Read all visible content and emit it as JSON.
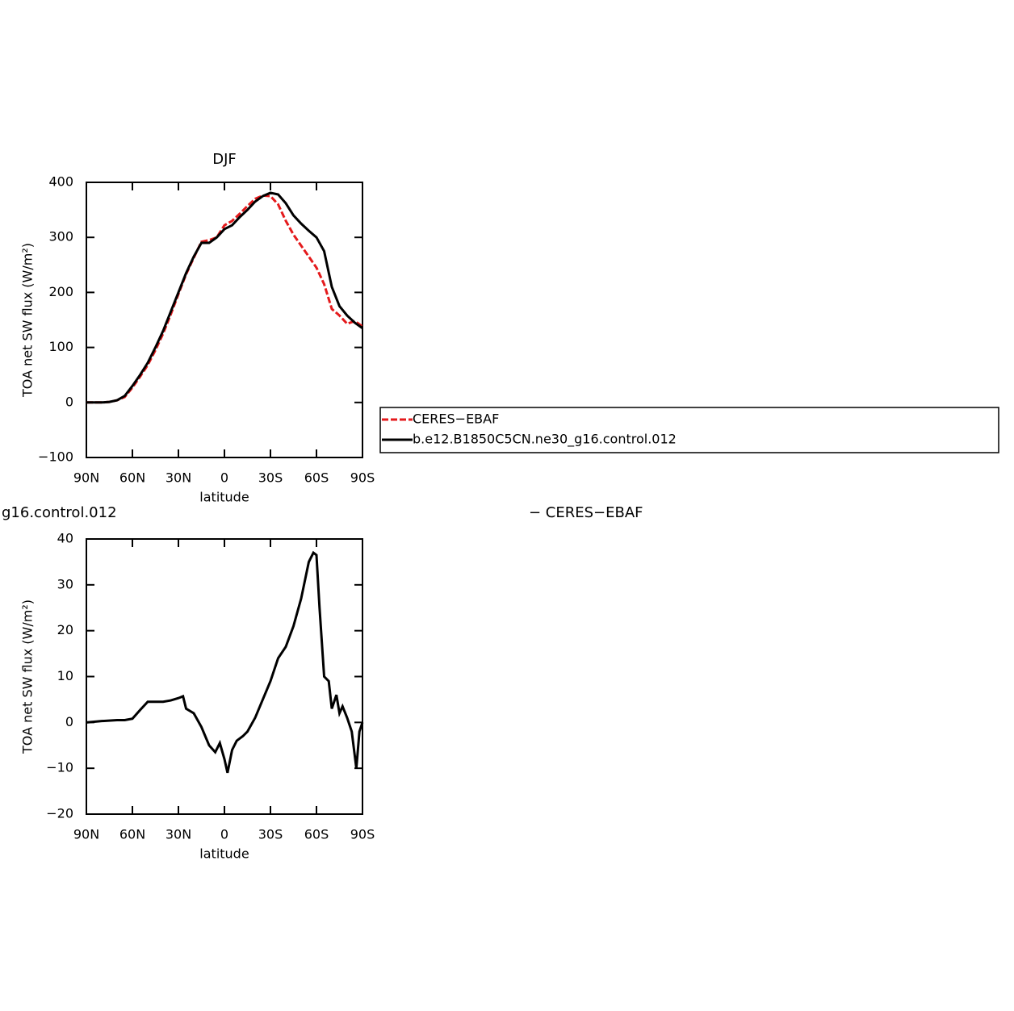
{
  "chart_data": [
    {
      "type": "line",
      "title": "DJF",
      "x_label": "latitude",
      "y_label": "TOA net SW flux (W/m²)",
      "xlim": [
        90,
        -90
      ],
      "ylim": [
        -100,
        400
      ],
      "xticks": [
        {
          "value": 90,
          "label": "90N"
        },
        {
          "value": 60,
          "label": "60N"
        },
        {
          "value": 30,
          "label": "30N"
        },
        {
          "value": 0,
          "label": "0"
        },
        {
          "value": -30,
          "label": "30S"
        },
        {
          "value": -60,
          "label": "60S"
        },
        {
          "value": -90,
          "label": "90S"
        }
      ],
      "yticks": [
        {
          "value": -100,
          "label": "−100"
        },
        0,
        100,
        200,
        300,
        400
      ],
      "legend": "right",
      "x": [
        90,
        85,
        80,
        75,
        70,
        65,
        60,
        55,
        50,
        45,
        40,
        35,
        30,
        25,
        20,
        15,
        10,
        5,
        0,
        -5,
        -10,
        -15,
        -20,
        -25,
        -30,
        -35,
        -40,
        -45,
        -50,
        -55,
        -60,
        -65,
        -70,
        -75,
        -80,
        -85,
        -90
      ],
      "series": [
        {
          "name": "CERES−EBAF",
          "color": "#e41a1c",
          "dashed": true,
          "values": [
            0,
            0,
            0,
            1,
            4,
            10,
            27,
            47,
            68,
            95,
            125,
            160,
            197,
            233,
            263,
            292,
            295,
            300,
            322,
            330,
            343,
            357,
            370,
            376,
            375,
            360,
            330,
            305,
            285,
            265,
            245,
            215,
            170,
            158,
            143,
            148,
            138
          ]
        },
        {
          "name": "b.e12.B1850C5CN.ne30_g16.control.012",
          "color": "#000000",
          "dashed": false,
          "values": [
            0,
            0,
            0,
            1,
            4,
            12,
            30,
            50,
            72,
            100,
            130,
            165,
            200,
            235,
            265,
            290,
            290,
            300,
            315,
            322,
            337,
            350,
            365,
            375,
            381,
            378,
            362,
            340,
            325,
            312,
            300,
            275,
            210,
            175,
            158,
            145,
            135
          ]
        }
      ]
    },
    {
      "type": "line",
      "title_parts": [
        "g16.control.012",
        "− CERES−EBAF"
      ],
      "x_label": "latitude",
      "y_label": "TOA net SW flux (W/m²)",
      "xlim": [
        90,
        -90
      ],
      "ylim": [
        -20,
        40
      ],
      "xticks": [
        {
          "value": 90,
          "label": "90N"
        },
        {
          "value": 60,
          "label": "60N"
        },
        {
          "value": 30,
          "label": "30N"
        },
        {
          "value": 0,
          "label": "0"
        },
        {
          "value": -30,
          "label": "30S"
        },
        {
          "value": -60,
          "label": "60S"
        },
        {
          "value": -90,
          "label": "90S"
        }
      ],
      "yticks": [
        {
          "value": -20,
          "label": "−20"
        },
        {
          "value": -10,
          "label": "−10"
        },
        0,
        10,
        20,
        30,
        40
      ],
      "x": [
        90,
        80,
        70,
        65,
        60,
        55,
        50,
        40,
        35,
        30,
        27,
        25,
        20,
        15,
        10,
        6,
        3,
        0,
        -2,
        -5,
        -8,
        -12,
        -15,
        -20,
        -25,
        -30,
        -35,
        -40,
        -45,
        -50,
        -55,
        -58,
        -60,
        -62,
        -65,
        -68,
        -70,
        -73,
        -75,
        -77,
        -80,
        -83,
        -86,
        -88,
        -90
      ],
      "series": [
        {
          "color": "#000000",
          "dashed": false,
          "values": [
            0,
            0.3,
            0.5,
            0.5,
            0.8,
            2.7,
            4.5,
            4.5,
            4.8,
            5.3,
            5.7,
            3,
            2,
            -1,
            -5,
            -6.5,
            -4.5,
            -8,
            -11,
            -6,
            -4,
            -3,
            -2,
            1,
            5,
            9,
            14,
            16.5,
            21,
            27,
            35,
            37,
            36.5,
            25,
            10,
            9,
            3,
            6,
            2,
            3.5,
            1,
            -2,
            -10,
            -2,
            0
          ]
        }
      ]
    }
  ]
}
